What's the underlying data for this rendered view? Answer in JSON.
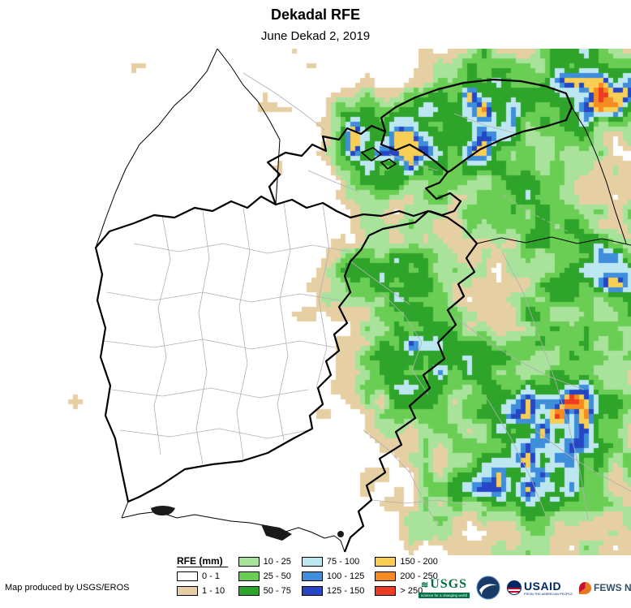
{
  "header": {
    "title": "Dekadal RFE",
    "subtitle": "June Dekad 2, 2019"
  },
  "legend": {
    "title": "RFE (mm)",
    "items": [
      {
        "label": "0 - 1",
        "color": "#FFFFFF"
      },
      {
        "label": "1 - 10",
        "color": "#E5CFA3"
      },
      {
        "label": "10 - 25",
        "color": "#A9E39B"
      },
      {
        "label": "25 - 50",
        "color": "#6BCE54"
      },
      {
        "label": "50 - 75",
        "color": "#2FA42B"
      },
      {
        "label": "75 - 100",
        "color": "#BCE7F0"
      },
      {
        "label": "100 - 125",
        "color": "#3E8EDC"
      },
      {
        "label": "125 - 150",
        "color": "#2547C4"
      },
      {
        "label": "150 - 200",
        "color": "#F8CE55"
      },
      {
        "label": "200 - 250",
        "color": "#F68B21"
      },
      {
        "label": "> 250",
        "color": "#EE3B24"
      }
    ]
  },
  "credit": "Map produced by USGS/EROS",
  "logos": {
    "usgs": {
      "name": "USGS",
      "tagline": "science for a changing world"
    },
    "noaa": {
      "name": "NOAA"
    },
    "usaid": {
      "name": "USAID",
      "tagline": "FROM THE AMERICAN PEOPLE"
    },
    "fewsnet": {
      "name": "FEWS NET"
    }
  },
  "map_colors": {
    "country_border": "#000000",
    "admin_border": "#b0b0b0",
    "water": "#1a1a1a"
  }
}
